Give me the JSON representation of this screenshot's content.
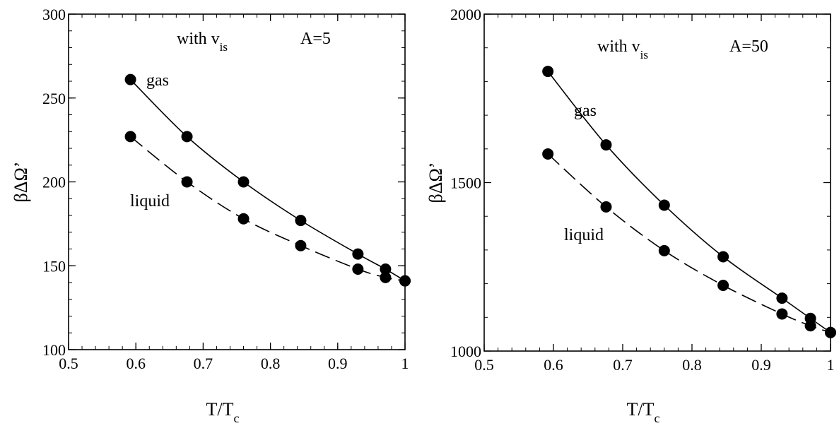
{
  "chart_data": [
    {
      "type": "line",
      "xlabel": "T/T",
      "xlabel_sub": "c",
      "ylabel": "βΔΩ’",
      "xlim": [
        0.5,
        1.0
      ],
      "ylim": [
        100,
        300
      ],
      "xticks": [
        "0.5",
        "0.6",
        "0.7",
        "0.8",
        "0.9",
        "1"
      ],
      "yticks": [
        "100",
        "150",
        "200",
        "250",
        "300"
      ],
      "annotation_with": "with v",
      "annotation_with_sub": "is",
      "annotation_A": "A=5",
      "series": [
        {
          "name": "gas",
          "line_style": "solid",
          "x": [
            0.592,
            0.676,
            0.76,
            0.845,
            0.93,
            0.971,
            1.0
          ],
          "y": [
            261,
            227,
            200,
            177,
            157,
            148,
            141
          ]
        },
        {
          "name": "liquid",
          "line_style": "dashed",
          "x": [
            0.592,
            0.676,
            0.76,
            0.845,
            0.93,
            0.971,
            1.0
          ],
          "y": [
            227,
            200,
            178,
            162,
            148,
            143,
            141
          ]
        }
      ]
    },
    {
      "type": "line",
      "xlabel": "T/T",
      "xlabel_sub": "c",
      "ylabel": "βΔΩ’",
      "xlim": [
        0.5,
        1.0
      ],
      "ylim": [
        1000,
        2000
      ],
      "xticks": [
        "0.5",
        "0.6",
        "0.7",
        "0.8",
        "0.9",
        "1"
      ],
      "yticks": [
        "1000",
        "1500",
        "2000"
      ],
      "annotation_with": "with v",
      "annotation_with_sub": "is",
      "annotation_A": "A=50",
      "series": [
        {
          "name": "gas",
          "line_style": "solid",
          "x": [
            0.592,
            0.676,
            0.76,
            0.845,
            0.93,
            0.971,
            1.0
          ],
          "y": [
            1830,
            1612,
            1433,
            1280,
            1157,
            1097,
            1055
          ]
        },
        {
          "name": "liquid",
          "line_style": "dashed",
          "x": [
            0.592,
            0.676,
            0.76,
            0.845,
            0.93,
            0.971,
            1.0
          ],
          "y": [
            1585,
            1428,
            1298,
            1195,
            1110,
            1075,
            1055
          ]
        }
      ]
    }
  ]
}
